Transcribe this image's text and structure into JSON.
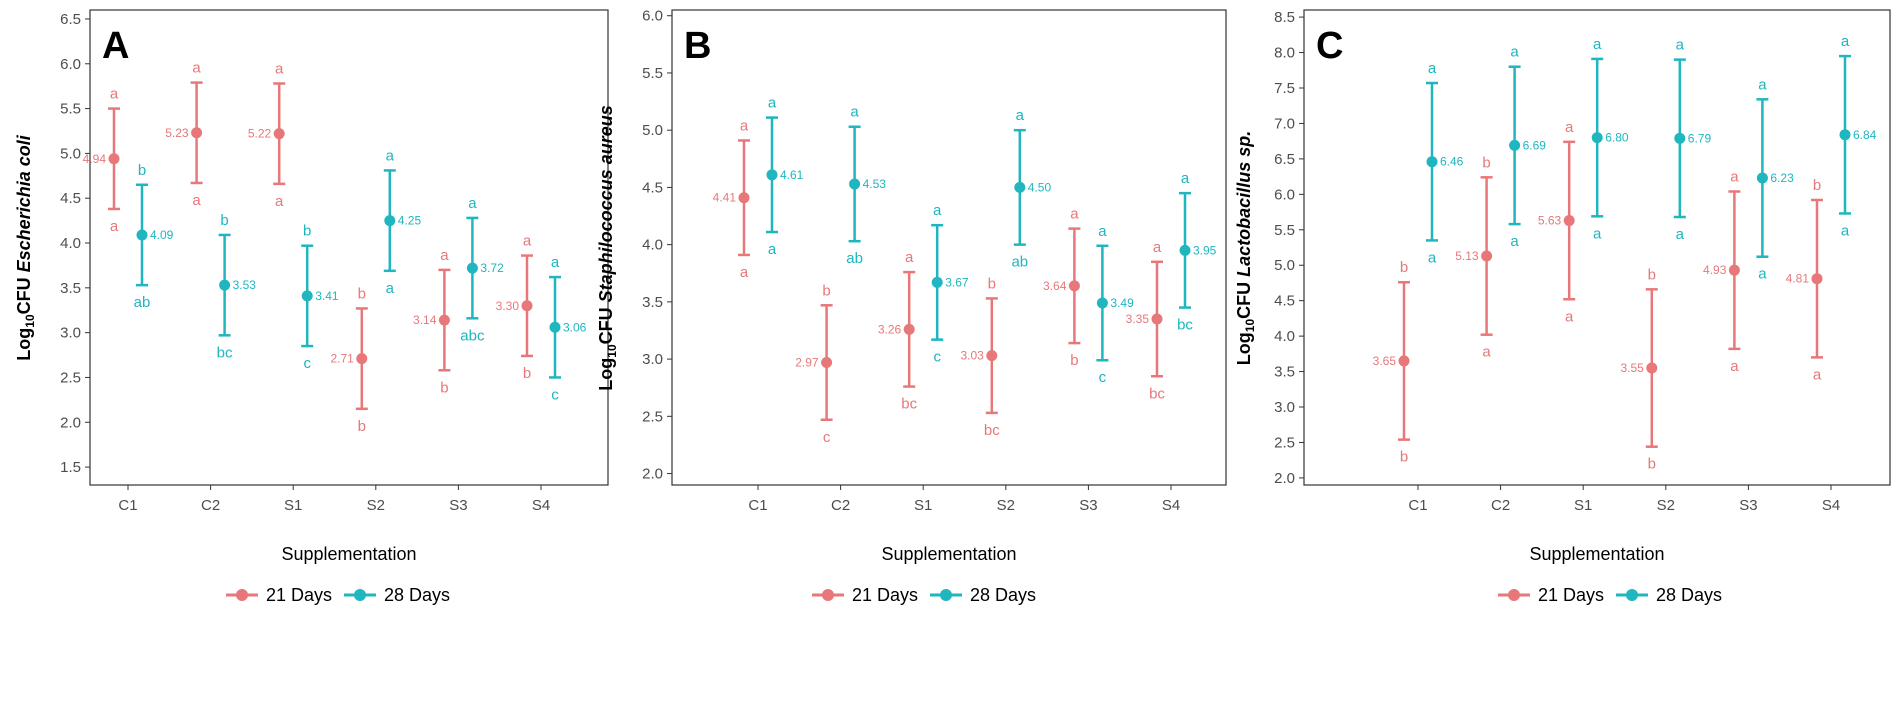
{
  "colors": {
    "d21": "#e8777a",
    "d28": "#1fb6bf"
  },
  "legend": {
    "d21_label": "21 Days",
    "d28_label": "28 Days"
  },
  "chart_data": [
    {
      "type": "scatter",
      "panel_letter": "A",
      "ylabel_prefix": "Log",
      "ylabel_sub": "10",
      "ylabel_unit": "CFU",
      "ylabel_species": "Escherichia coli",
      "xlabel": "Supplementation",
      "ylim": [
        1.3,
        6.6
      ],
      "yticks": [
        "1.5",
        "2.0",
        "2.5",
        "3.0",
        "3.5",
        "4.0",
        "4.5",
        "5.0",
        "5.5",
        "6.0",
        "6.5"
      ],
      "categories": [
        "C1",
        "C2",
        "S1",
        "S2",
        "S3",
        "S4"
      ],
      "series": [
        {
          "name": "21 Days",
          "values": [
            4.94,
            5.23,
            5.22,
            2.71,
            3.14,
            3.3
          ],
          "lower": [
            4.38,
            4.67,
            4.66,
            2.15,
            2.58,
            2.74
          ],
          "upper": [
            5.5,
            5.79,
            5.78,
            3.27,
            3.7,
            3.86
          ],
          "upper_sig": [
            "a",
            "a",
            "a",
            "b",
            "a",
            "a"
          ],
          "lower_sig": [
            "a",
            "a",
            "a",
            "b",
            "b",
            "b"
          ],
          "value_labels": [
            "4.94",
            "5.23",
            "5.22",
            "2.71",
            "3.14",
            "3.30"
          ]
        },
        {
          "name": "28 Days",
          "values": [
            4.09,
            3.53,
            3.41,
            4.25,
            3.72,
            3.06
          ],
          "lower": [
            3.53,
            2.97,
            2.85,
            3.69,
            3.16,
            2.5
          ],
          "upper": [
            4.65,
            4.09,
            3.97,
            4.81,
            4.28,
            3.62
          ],
          "upper_sig": [
            "b",
            "b",
            "b",
            "a",
            "a",
            "a"
          ],
          "lower_sig": [
            "ab",
            "bc",
            "c",
            "a",
            "abc",
            "c"
          ],
          "value_labels": [
            "4.09",
            "3.53",
            "3.41",
            "4.25",
            "3.72",
            "3.06"
          ]
        }
      ]
    },
    {
      "type": "scatter",
      "panel_letter": "B",
      "ylabel_prefix": "Log",
      "ylabel_sub": "10",
      "ylabel_unit": "CFU",
      "ylabel_species": "Staphilococcus aureus",
      "xlabel": "Supplementation",
      "ylim": [
        1.9,
        6.05
      ],
      "yticks": [
        "2.0",
        "2.5",
        "3.0",
        "3.5",
        "4.0",
        "4.5",
        "5.0",
        "5.5",
        "6.0"
      ],
      "categories": [
        "C1",
        "C2",
        "S1",
        "S2",
        "S3",
        "S4"
      ],
      "series": [
        {
          "name": "21 Days",
          "values": [
            4.41,
            2.97,
            3.26,
            3.03,
            3.64,
            3.35
          ],
          "lower": [
            3.91,
            2.47,
            2.76,
            2.53,
            3.14,
            2.85
          ],
          "upper": [
            4.91,
            3.47,
            3.76,
            3.53,
            4.14,
            3.85
          ],
          "upper_sig": [
            "a",
            "b",
            "a",
            "b",
            "a",
            "a"
          ],
          "lower_sig": [
            "a",
            "c",
            "bc",
            "bc",
            "b",
            "bc"
          ],
          "value_labels": [
            "4.41",
            "2.97",
            "3.26",
            "3.03",
            "3.64",
            "3.35"
          ]
        },
        {
          "name": "28 Days",
          "values": [
            4.61,
            4.53,
            3.67,
            4.5,
            3.49,
            3.95
          ],
          "lower": [
            4.11,
            4.03,
            3.17,
            4.0,
            2.99,
            3.45
          ],
          "upper": [
            5.11,
            5.03,
            4.17,
            5.0,
            3.99,
            4.45
          ],
          "upper_sig": [
            "a",
            "a",
            "a",
            "a",
            "a",
            "a"
          ],
          "lower_sig": [
            "a",
            "ab",
            "c",
            "ab",
            "c",
            "bc"
          ],
          "value_labels": [
            "4.61",
            "4.53",
            "3.67",
            "4.50",
            "3.49",
            "3.95"
          ]
        }
      ]
    },
    {
      "type": "scatter",
      "panel_letter": "C",
      "ylabel_prefix": "Log",
      "ylabel_sub": "10",
      "ylabel_unit": "CFU",
      "ylabel_species": "Lactobacillus sp.",
      "xlabel": "Supplementation",
      "ylim": [
        1.9,
        8.6
      ],
      "yticks": [
        "2.0",
        "2.5",
        "3.0",
        "3.5",
        "4.0",
        "4.5",
        "5.0",
        "5.5",
        "6.0",
        "6.5",
        "7.0",
        "7.5",
        "8.0",
        "8.5"
      ],
      "categories": [
        "C1",
        "C2",
        "S1",
        "S2",
        "S3",
        "S4"
      ],
      "series": [
        {
          "name": "21 Days",
          "values": [
            3.65,
            5.13,
            5.63,
            3.55,
            4.93,
            4.81
          ],
          "lower": [
            2.54,
            4.02,
            4.52,
            2.44,
            3.82,
            3.7
          ],
          "upper": [
            4.76,
            6.24,
            6.74,
            4.66,
            6.04,
            5.92
          ],
          "upper_sig": [
            "b",
            "b",
            "a",
            "b",
            "a",
            "b"
          ],
          "lower_sig": [
            "b",
            "a",
            "a",
            "b",
            "a",
            "a"
          ],
          "value_labels": [
            "3.65",
            "5.13",
            "5.63",
            "3.55",
            "4.93",
            "4.81"
          ]
        },
        {
          "name": "28 Days",
          "values": [
            6.46,
            6.69,
            6.8,
            6.79,
            6.23,
            6.84
          ],
          "lower": [
            5.35,
            5.58,
            5.69,
            5.68,
            5.12,
            5.73
          ],
          "upper": [
            7.57,
            7.8,
            7.91,
            7.9,
            7.34,
            7.95
          ],
          "upper_sig": [
            "a",
            "a",
            "a",
            "a",
            "a",
            "a"
          ],
          "lower_sig": [
            "a",
            "a",
            "a",
            "a",
            "a",
            "a"
          ],
          "value_labels": [
            "6.46",
            "6.69",
            "6.80",
            "6.79",
            "6.23",
            "6.84"
          ]
        }
      ]
    }
  ]
}
